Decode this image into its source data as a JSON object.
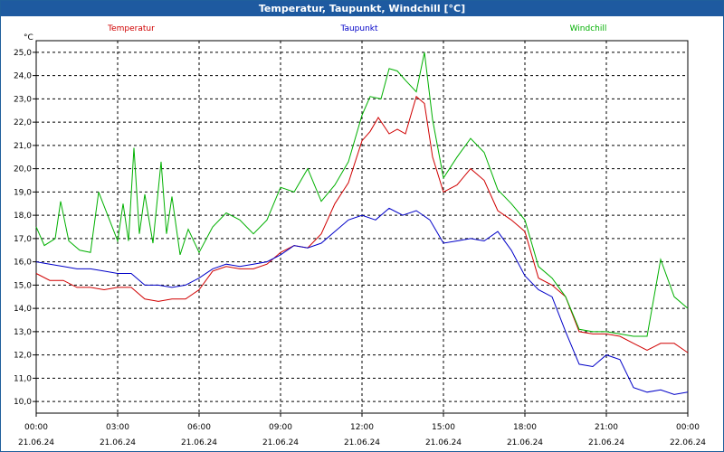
{
  "window": {
    "title": "Temperatur, Taupunkt, Windchill [°C]"
  },
  "chart_data": {
    "type": "line",
    "title": "Temperatur, Taupunkt, Windchill [°C]",
    "ylabel": "°C",
    "ylim": [
      9.5,
      25.5
    ],
    "y_ticks": [
      "10,0",
      "11,0",
      "12,0",
      "13,0",
      "14,0",
      "15,0",
      "16,0",
      "17,0",
      "18,0",
      "19,0",
      "20,0",
      "21,0",
      "22,0",
      "23,0",
      "24,0",
      "25,0"
    ],
    "xlim": [
      0,
      24
    ],
    "x_ticks": [
      {
        "time": "00:00",
        "date": "21.06.24"
      },
      {
        "time": "03:00",
        "date": "21.06.24"
      },
      {
        "time": "06:00",
        "date": "21.06.24"
      },
      {
        "time": "09:00",
        "date": "21.06.24"
      },
      {
        "time": "12:00",
        "date": "21.06.24"
      },
      {
        "time": "15:00",
        "date": "21.06.24"
      },
      {
        "time": "18:00",
        "date": "21.06.24"
      },
      {
        "time": "21:00",
        "date": "21.06.24"
      },
      {
        "time": "00:00",
        "date": "22.06.24"
      }
    ],
    "grid": true,
    "legend_placement": "top",
    "series": [
      {
        "name": "Temperatur",
        "color": "#d00000",
        "points": [
          [
            0,
            15.5
          ],
          [
            0.5,
            15.2
          ],
          [
            1.0,
            15.2
          ],
          [
            1.5,
            14.9
          ],
          [
            2.0,
            14.9
          ],
          [
            2.5,
            14.8
          ],
          [
            3.0,
            14.9
          ],
          [
            3.5,
            14.9
          ],
          [
            4.0,
            14.4
          ],
          [
            4.5,
            14.3
          ],
          [
            5.0,
            14.4
          ],
          [
            5.5,
            14.4
          ],
          [
            6.0,
            14.8
          ],
          [
            6.5,
            15.6
          ],
          [
            7.0,
            15.8
          ],
          [
            7.5,
            15.7
          ],
          [
            8.0,
            15.7
          ],
          [
            8.5,
            15.9
          ],
          [
            9.0,
            16.4
          ],
          [
            9.5,
            16.7
          ],
          [
            10.0,
            16.6
          ],
          [
            10.5,
            17.2
          ],
          [
            11.0,
            18.5
          ],
          [
            11.5,
            19.4
          ],
          [
            12.0,
            21.2
          ],
          [
            12.3,
            21.6
          ],
          [
            12.6,
            22.2
          ],
          [
            13.0,
            21.5
          ],
          [
            13.3,
            21.7
          ],
          [
            13.6,
            21.5
          ],
          [
            14.0,
            23.1
          ],
          [
            14.3,
            22.8
          ],
          [
            14.6,
            20.5
          ],
          [
            15.0,
            19.0
          ],
          [
            15.5,
            19.3
          ],
          [
            16.0,
            20.0
          ],
          [
            16.5,
            19.5
          ],
          [
            17.0,
            18.2
          ],
          [
            17.5,
            17.8
          ],
          [
            18.0,
            17.3
          ],
          [
            18.5,
            15.3
          ],
          [
            19.0,
            15.0
          ],
          [
            19.5,
            14.5
          ],
          [
            20.0,
            13.0
          ],
          [
            20.5,
            12.9
          ],
          [
            21.0,
            12.9
          ],
          [
            21.5,
            12.8
          ],
          [
            22.0,
            12.5
          ],
          [
            22.5,
            12.2
          ],
          [
            23.0,
            12.5
          ],
          [
            23.5,
            12.5
          ],
          [
            24.0,
            12.1
          ]
        ]
      },
      {
        "name": "Taupunkt",
        "color": "#0000c8",
        "points": [
          [
            0,
            16.0
          ],
          [
            0.5,
            15.9
          ],
          [
            1.0,
            15.8
          ],
          [
            1.5,
            15.7
          ],
          [
            2.0,
            15.7
          ],
          [
            2.5,
            15.6
          ],
          [
            3.0,
            15.5
          ],
          [
            3.5,
            15.5
          ],
          [
            4.0,
            15.0
          ],
          [
            4.5,
            15.0
          ],
          [
            5.0,
            14.9
          ],
          [
            5.5,
            15.0
          ],
          [
            6.0,
            15.3
          ],
          [
            6.5,
            15.7
          ],
          [
            7.0,
            15.9
          ],
          [
            7.5,
            15.8
          ],
          [
            8.0,
            15.9
          ],
          [
            8.5,
            16.0
          ],
          [
            9.0,
            16.3
          ],
          [
            9.5,
            16.7
          ],
          [
            10.0,
            16.6
          ],
          [
            10.5,
            16.8
          ],
          [
            11.0,
            17.3
          ],
          [
            11.5,
            17.8
          ],
          [
            12.0,
            18.0
          ],
          [
            12.5,
            17.8
          ],
          [
            13.0,
            18.3
          ],
          [
            13.5,
            18.0
          ],
          [
            14.0,
            18.2
          ],
          [
            14.5,
            17.8
          ],
          [
            15.0,
            16.8
          ],
          [
            15.5,
            16.9
          ],
          [
            16.0,
            17.0
          ],
          [
            16.5,
            16.9
          ],
          [
            17.0,
            17.3
          ],
          [
            17.5,
            16.5
          ],
          [
            18.0,
            15.4
          ],
          [
            18.5,
            14.8
          ],
          [
            19.0,
            14.5
          ],
          [
            19.5,
            13.0
          ],
          [
            20.0,
            11.6
          ],
          [
            20.5,
            11.5
          ],
          [
            21.0,
            12.0
          ],
          [
            21.5,
            11.8
          ],
          [
            22.0,
            10.6
          ],
          [
            22.5,
            10.4
          ],
          [
            23.0,
            10.5
          ],
          [
            23.5,
            10.3
          ],
          [
            24.0,
            10.4
          ]
        ]
      },
      {
        "name": "Windchill",
        "color": "#00b000",
        "points": [
          [
            0,
            17.5
          ],
          [
            0.3,
            16.7
          ],
          [
            0.7,
            17.0
          ],
          [
            0.9,
            18.6
          ],
          [
            1.2,
            16.9
          ],
          [
            1.6,
            16.5
          ],
          [
            2.0,
            16.4
          ],
          [
            2.3,
            19.0
          ],
          [
            2.7,
            17.8
          ],
          [
            3.0,
            16.9
          ],
          [
            3.2,
            18.5
          ],
          [
            3.4,
            16.9
          ],
          [
            3.6,
            20.9
          ],
          [
            3.8,
            17.2
          ],
          [
            4.0,
            18.9
          ],
          [
            4.3,
            16.8
          ],
          [
            4.6,
            20.3
          ],
          [
            4.8,
            17.2
          ],
          [
            5.0,
            18.8
          ],
          [
            5.3,
            16.3
          ],
          [
            5.6,
            17.4
          ],
          [
            6.0,
            16.4
          ],
          [
            6.5,
            17.5
          ],
          [
            7.0,
            18.1
          ],
          [
            7.5,
            17.8
          ],
          [
            8.0,
            17.2
          ],
          [
            8.5,
            17.8
          ],
          [
            9.0,
            19.2
          ],
          [
            9.5,
            19.0
          ],
          [
            10.0,
            20.0
          ],
          [
            10.5,
            18.6
          ],
          [
            11.0,
            19.3
          ],
          [
            11.5,
            20.3
          ],
          [
            12.0,
            22.3
          ],
          [
            12.3,
            23.1
          ],
          [
            12.7,
            23.0
          ],
          [
            13.0,
            24.3
          ],
          [
            13.3,
            24.2
          ],
          [
            13.6,
            23.8
          ],
          [
            14.0,
            23.3
          ],
          [
            14.3,
            25.0
          ],
          [
            14.6,
            22.1
          ],
          [
            15.0,
            19.6
          ],
          [
            15.5,
            20.5
          ],
          [
            16.0,
            21.3
          ],
          [
            16.5,
            20.7
          ],
          [
            17.0,
            19.1
          ],
          [
            17.5,
            18.5
          ],
          [
            18.0,
            17.8
          ],
          [
            18.5,
            15.8
          ],
          [
            19.0,
            15.3
          ],
          [
            19.5,
            14.5
          ],
          [
            20.0,
            13.1
          ],
          [
            20.5,
            13.0
          ],
          [
            21.0,
            13.0
          ],
          [
            21.5,
            12.9
          ],
          [
            22.0,
            12.8
          ],
          [
            22.5,
            12.8
          ],
          [
            23.0,
            16.1
          ],
          [
            23.5,
            14.5
          ],
          [
            24.0,
            14.0
          ]
        ]
      }
    ]
  }
}
